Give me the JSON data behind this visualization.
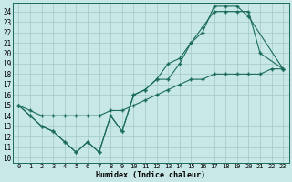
{
  "xlabel": "Humidex (Indice chaleur)",
  "bg_color": "#c8e8e8",
  "grid_color": "#a8cccc",
  "line_color": "#1a6b5a",
  "xlim": [
    -0.5,
    23.5
  ],
  "ylim": [
    9.5,
    24.8
  ],
  "xticks": [
    0,
    1,
    2,
    3,
    4,
    5,
    6,
    7,
    8,
    9,
    10,
    11,
    12,
    13,
    14,
    15,
    16,
    17,
    18,
    19,
    20,
    21,
    22,
    23
  ],
  "yticks": [
    10,
    11,
    12,
    13,
    14,
    15,
    16,
    17,
    18,
    19,
    20,
    21,
    22,
    23,
    24
  ],
  "line1_x": [
    0,
    1,
    2,
    3,
    4,
    5,
    6,
    7,
    8,
    9,
    10,
    11,
    12,
    13,
    14,
    15,
    16,
    17,
    18,
    19,
    20,
    23
  ],
  "line1_y": [
    15,
    14,
    13,
    12.5,
    11.5,
    10.5,
    11.5,
    10.5,
    14,
    12.5,
    16,
    16.5,
    17.5,
    19,
    19.5,
    21,
    22,
    24.5,
    24.5,
    24.5,
    23.5,
    18.5
  ],
  "line2_x": [
    0,
    1,
    2,
    3,
    4,
    5,
    6,
    7,
    8,
    9,
    10,
    11,
    12,
    13,
    14,
    15,
    16,
    17,
    18,
    19,
    20,
    21,
    23
  ],
  "line2_y": [
    15,
    14,
    13,
    12.5,
    11.5,
    10.5,
    11.5,
    10.5,
    14,
    12.5,
    16,
    16.5,
    17.5,
    17.5,
    19,
    21,
    22.5,
    24,
    24,
    24,
    24,
    20,
    18.5
  ],
  "line3_x": [
    0,
    1,
    2,
    3,
    4,
    5,
    6,
    7,
    8,
    9,
    10,
    11,
    12,
    13,
    14,
    15,
    16,
    17,
    18,
    19,
    20,
    21,
    22,
    23
  ],
  "line3_y": [
    15,
    14.5,
    14,
    14,
    14,
    14,
    14,
    14,
    14.5,
    14.5,
    15,
    15.5,
    16,
    16.5,
    17,
    17.5,
    17.5,
    18,
    18,
    18,
    18,
    18,
    18.5,
    18.5
  ]
}
